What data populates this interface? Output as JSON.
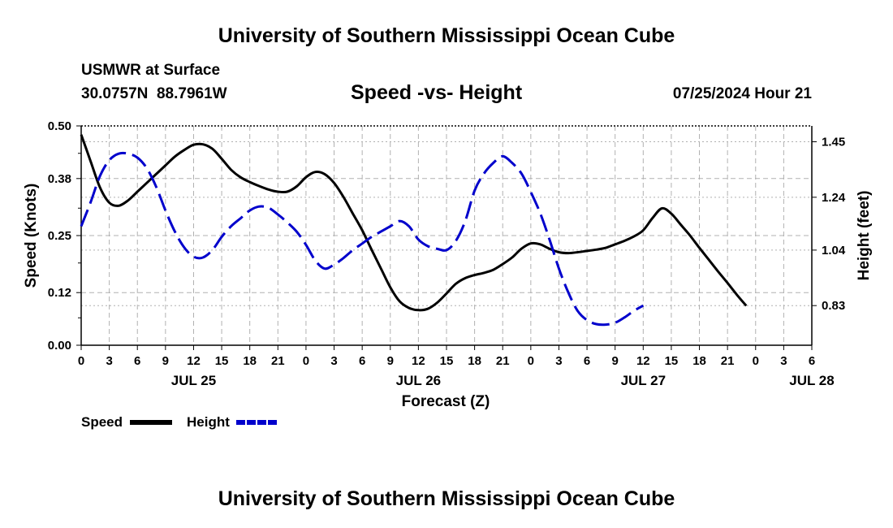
{
  "header": {
    "title_top": "University of Southern Mississippi Ocean Cube",
    "title_bottom": "University of Southern Mississippi Ocean Cube",
    "station": "USMWR at Surface",
    "coords": "30.0757N  88.7961W",
    "subtitle": "Speed -vs- Height",
    "datetime": "07/25/2024 Hour 21"
  },
  "colors": {
    "speed": "#000000",
    "height": "#0000cc",
    "grid": "#b0b0b0"
  },
  "legend": [
    {
      "label": "Speed",
      "color": "#000000",
      "dash": "solid"
    },
    {
      "label": "Height",
      "color": "#0000cc",
      "dash": "dashed"
    }
  ],
  "chart_data": {
    "type": "line",
    "title": "Speed -vs- Height",
    "xlabel": "Forecast (Z)",
    "ylabel_left": "Speed (Knots)",
    "ylabel_right": "Height (feet)",
    "x_range_hours": [
      0,
      78
    ],
    "x_ticks": [
      {
        "h": 0,
        "label": "0"
      },
      {
        "h": 3,
        "label": "3"
      },
      {
        "h": 6,
        "label": "6"
      },
      {
        "h": 9,
        "label": "9"
      },
      {
        "h": 12,
        "label": "12"
      },
      {
        "h": 15,
        "label": "15"
      },
      {
        "h": 18,
        "label": "18"
      },
      {
        "h": 21,
        "label": "21"
      },
      {
        "h": 24,
        "label": "0"
      },
      {
        "h": 27,
        "label": "3"
      },
      {
        "h": 30,
        "label": "6"
      },
      {
        "h": 33,
        "label": "9"
      },
      {
        "h": 36,
        "label": "12"
      },
      {
        "h": 39,
        "label": "15"
      },
      {
        "h": 42,
        "label": "18"
      },
      {
        "h": 45,
        "label": "21"
      },
      {
        "h": 48,
        "label": "0"
      },
      {
        "h": 51,
        "label": "3"
      },
      {
        "h": 54,
        "label": "6"
      },
      {
        "h": 57,
        "label": "9"
      },
      {
        "h": 60,
        "label": "12"
      },
      {
        "h": 63,
        "label": "15"
      },
      {
        "h": 66,
        "label": "18"
      },
      {
        "h": 69,
        "label": "21"
      },
      {
        "h": 72,
        "label": "0"
      },
      {
        "h": 75,
        "label": "3"
      },
      {
        "h": 78,
        "label": "6"
      }
    ],
    "day_labels": [
      {
        "h": 12,
        "label": "JUL 25"
      },
      {
        "h": 36,
        "label": "JUL 26"
      },
      {
        "h": 60,
        "label": "JUL 27"
      },
      {
        "h": 78,
        "label": "JUL 28"
      }
    ],
    "y_left": {
      "min": 0.0,
      "max": 0.5,
      "ticks": [
        0.0,
        0.12,
        0.25,
        0.38,
        0.5
      ],
      "tick_labels": [
        "0.00",
        "0.12",
        "0.25",
        "0.38",
        "0.50"
      ]
    },
    "y_right": {
      "min": 0.68,
      "max": 1.51,
      "ticks": [
        0.83,
        1.04,
        1.24,
        1.45
      ],
      "tick_labels": [
        "0.83",
        "1.04",
        "1.24",
        "1.45"
      ]
    },
    "series": [
      {
        "name": "Speed",
        "axis": "left",
        "points": [
          [
            0,
            0.48
          ],
          [
            1,
            0.42
          ],
          [
            2,
            0.36
          ],
          [
            3,
            0.325
          ],
          [
            4,
            0.318
          ],
          [
            5,
            0.33
          ],
          [
            6,
            0.35
          ],
          [
            7,
            0.37
          ],
          [
            8,
            0.39
          ],
          [
            9,
            0.41
          ],
          [
            10,
            0.43
          ],
          [
            11,
            0.445
          ],
          [
            12,
            0.457
          ],
          [
            13,
            0.458
          ],
          [
            14,
            0.448
          ],
          [
            15,
            0.425
          ],
          [
            16,
            0.4
          ],
          [
            17,
            0.383
          ],
          [
            18,
            0.372
          ],
          [
            19,
            0.363
          ],
          [
            20,
            0.355
          ],
          [
            21,
            0.35
          ],
          [
            22,
            0.35
          ],
          [
            23,
            0.362
          ],
          [
            24,
            0.383
          ],
          [
            25,
            0.395
          ],
          [
            26,
            0.39
          ],
          [
            27,
            0.37
          ],
          [
            28,
            0.338
          ],
          [
            29,
            0.3
          ],
          [
            30,
            0.262
          ],
          [
            31,
            0.218
          ],
          [
            32,
            0.175
          ],
          [
            33,
            0.132
          ],
          [
            34,
            0.1
          ],
          [
            35,
            0.085
          ],
          [
            36,
            0.08
          ],
          [
            37,
            0.083
          ],
          [
            38,
            0.097
          ],
          [
            39,
            0.118
          ],
          [
            40,
            0.14
          ],
          [
            41,
            0.153
          ],
          [
            42,
            0.16
          ],
          [
            43,
            0.165
          ],
          [
            44,
            0.172
          ],
          [
            45,
            0.185
          ],
          [
            46,
            0.2
          ],
          [
            47,
            0.22
          ],
          [
            48,
            0.232
          ],
          [
            49,
            0.23
          ],
          [
            50,
            0.22
          ],
          [
            51,
            0.212
          ],
          [
            52,
            0.21
          ],
          [
            53,
            0.212
          ],
          [
            54,
            0.215
          ],
          [
            55,
            0.218
          ],
          [
            56,
            0.222
          ],
          [
            57,
            0.23
          ],
          [
            58,
            0.238
          ],
          [
            59,
            0.248
          ],
          [
            60,
            0.262
          ],
          [
            61,
            0.29
          ],
          [
            62,
            0.312
          ],
          [
            63,
            0.3
          ],
          [
            64,
            0.275
          ],
          [
            65,
            0.25
          ],
          [
            66,
            0.222
          ],
          [
            67,
            0.195
          ],
          [
            68,
            0.168
          ],
          [
            69,
            0.142
          ],
          [
            70,
            0.115
          ],
          [
            71,
            0.09
          ]
        ]
      },
      {
        "name": "Height",
        "axis": "right",
        "points": [
          [
            0,
            1.13
          ],
          [
            1,
            1.22
          ],
          [
            2,
            1.32
          ],
          [
            3,
            1.38
          ],
          [
            4,
            1.405
          ],
          [
            5,
            1.405
          ],
          [
            6,
            1.39
          ],
          [
            7,
            1.35
          ],
          [
            8,
            1.28
          ],
          [
            9,
            1.19
          ],
          [
            10,
            1.11
          ],
          [
            11,
            1.05
          ],
          [
            12,
            1.015
          ],
          [
            13,
            1.012
          ],
          [
            14,
            1.04
          ],
          [
            15,
            1.09
          ],
          [
            16,
            1.13
          ],
          [
            17,
            1.16
          ],
          [
            18,
            1.19
          ],
          [
            19,
            1.205
          ],
          [
            20,
            1.2
          ],
          [
            21,
            1.175
          ],
          [
            22,
            1.145
          ],
          [
            23,
            1.11
          ],
          [
            24,
            1.06
          ],
          [
            25,
            1.0
          ],
          [
            26,
            0.97
          ],
          [
            27,
            0.985
          ],
          [
            28,
            1.01
          ],
          [
            29,
            1.04
          ],
          [
            30,
            1.065
          ],
          [
            31,
            1.09
          ],
          [
            32,
            1.11
          ],
          [
            33,
            1.13
          ],
          [
            34,
            1.15
          ],
          [
            35,
            1.13
          ],
          [
            36,
            1.08
          ],
          [
            37,
            1.055
          ],
          [
            38,
            1.045
          ],
          [
            39,
            1.04
          ],
          [
            40,
            1.075
          ],
          [
            41,
            1.15
          ],
          [
            42,
            1.265
          ],
          [
            43,
            1.33
          ],
          [
            44,
            1.37
          ],
          [
            45,
            1.395
          ],
          [
            46,
            1.37
          ],
          [
            47,
            1.33
          ],
          [
            48,
            1.26
          ],
          [
            49,
            1.18
          ],
          [
            50,
            1.08
          ],
          [
            51,
            0.97
          ],
          [
            52,
            0.88
          ],
          [
            53,
            0.81
          ],
          [
            54,
            0.775
          ],
          [
            55,
            0.76
          ],
          [
            56,
            0.758
          ],
          [
            57,
            0.765
          ],
          [
            58,
            0.785
          ],
          [
            59,
            0.81
          ],
          [
            60,
            0.83
          ]
        ]
      }
    ]
  }
}
